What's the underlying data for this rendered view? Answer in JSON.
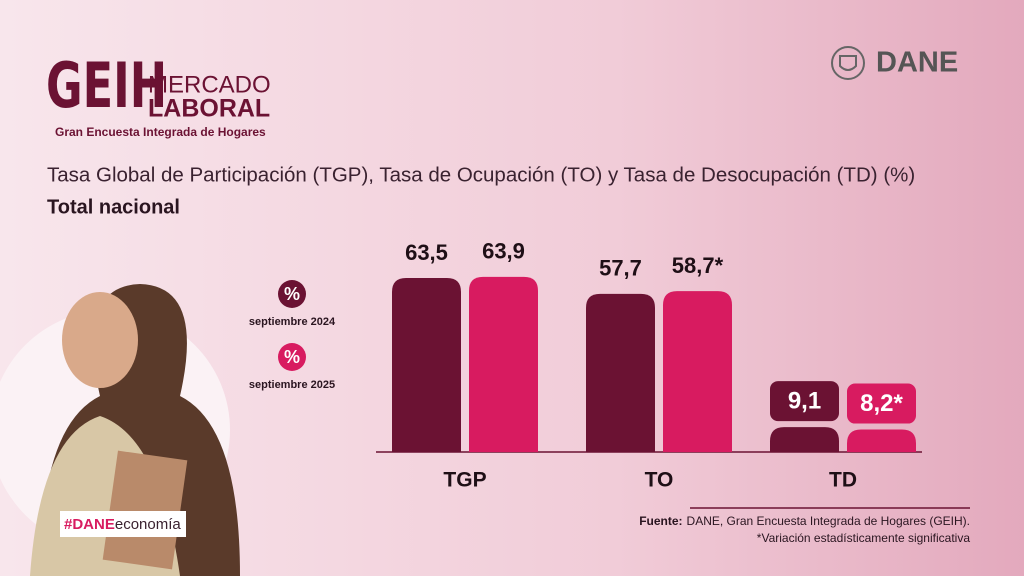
{
  "header": {
    "logo": {
      "mark": "GEIH",
      "line1": "MERCADO",
      "line2": "LABORAL",
      "tagline": "Gran Encuesta Integrada de Hogares"
    },
    "brand": "DANE"
  },
  "chart_data": {
    "type": "bar",
    "title": "Tasa Global de Participación (TGP), Tasa de Ocupación (TO) y Tasa de Desocupación (TD) (%)",
    "subtitle": "Total nacional",
    "categories": [
      "TGP",
      "TO",
      "TD"
    ],
    "series": [
      {
        "name": "septiembre 2024",
        "symbol": "%",
        "color": "#6b1233",
        "values": [
          63.5,
          57.7,
          9.1
        ],
        "value_labels": [
          "63,5",
          "57,7",
          "9,1"
        ]
      },
      {
        "name": "septiembre 2025",
        "symbol": "%",
        "color": "#d81b60",
        "values": [
          63.9,
          58.7,
          8.2
        ],
        "value_labels": [
          "63,9",
          "58,7*",
          "8,2*"
        ]
      }
    ]
  },
  "footer": {
    "hashtag": {
      "bold": "#DANE",
      "rest": "economía"
    },
    "source_label": "Fuente:",
    "source": "DANE, Gran Encuesta Integrada de Hogares (GEIH).",
    "note": "*Variación estadísticamente significativa"
  }
}
